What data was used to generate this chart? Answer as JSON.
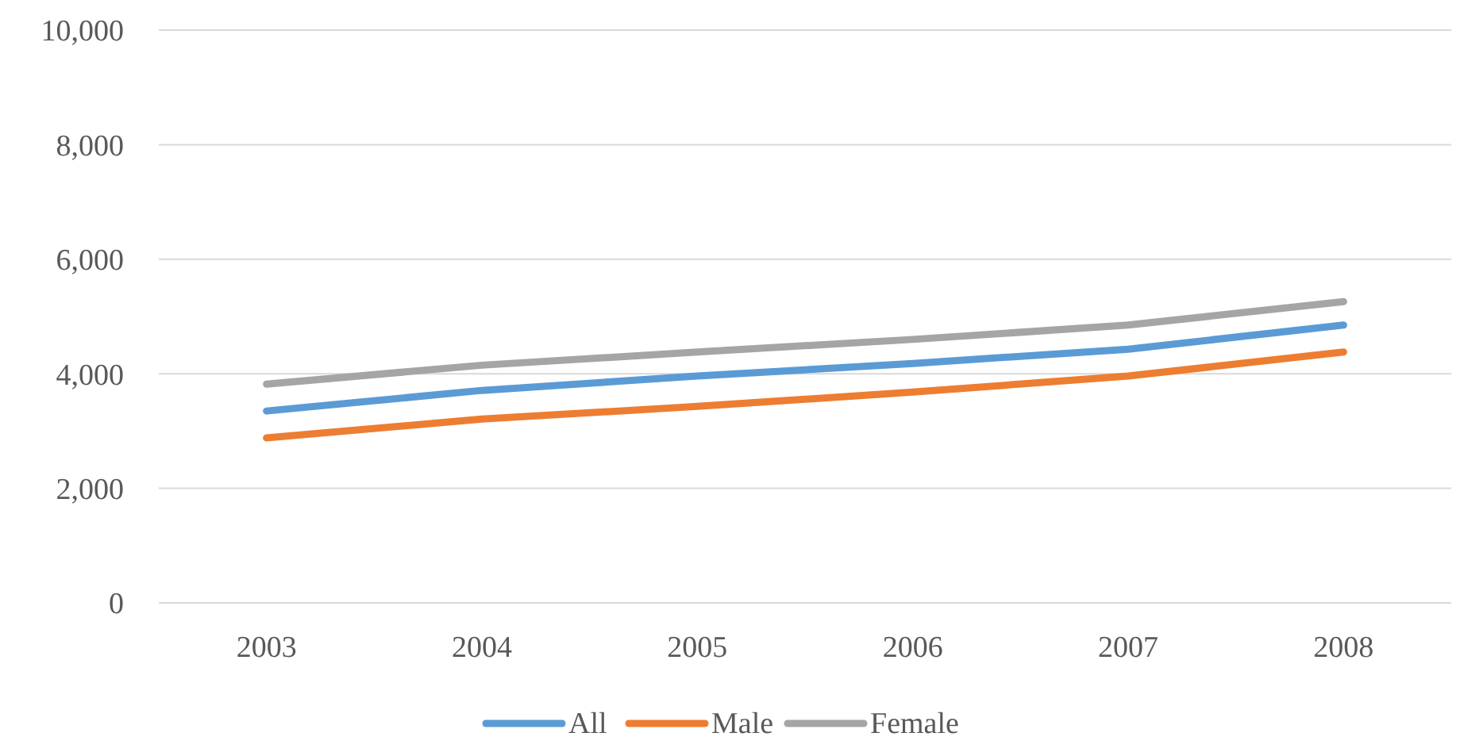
{
  "chart_data": {
    "type": "line",
    "categories": [
      "2003",
      "2004",
      "2005",
      "2006",
      "2007",
      "2008"
    ],
    "series": [
      {
        "name": "All",
        "color": "#5b9bd5",
        "values": [
          3350,
          3710,
          3960,
          4180,
          4430,
          4850
        ]
      },
      {
        "name": "Male",
        "color": "#ed7d31",
        "values": [
          2880,
          3210,
          3430,
          3680,
          3960,
          4380
        ]
      },
      {
        "name": "Female",
        "color": "#a5a5a5",
        "values": [
          3820,
          4150,
          4380,
          4600,
          4850,
          5260
        ]
      }
    ],
    "ylim": [
      0,
      10000
    ],
    "yticks": [
      {
        "value": 0,
        "label": "0"
      },
      {
        "value": 2000,
        "label": "2,000"
      },
      {
        "value": 4000,
        "label": "4,000"
      },
      {
        "value": 6000,
        "label": "6,000"
      },
      {
        "value": 8000,
        "label": "8,000"
      },
      {
        "value": 10000,
        "label": "10,000"
      }
    ],
    "grid": "y",
    "legend": "bottom",
    "marker": "none",
    "line_style": "solid"
  }
}
